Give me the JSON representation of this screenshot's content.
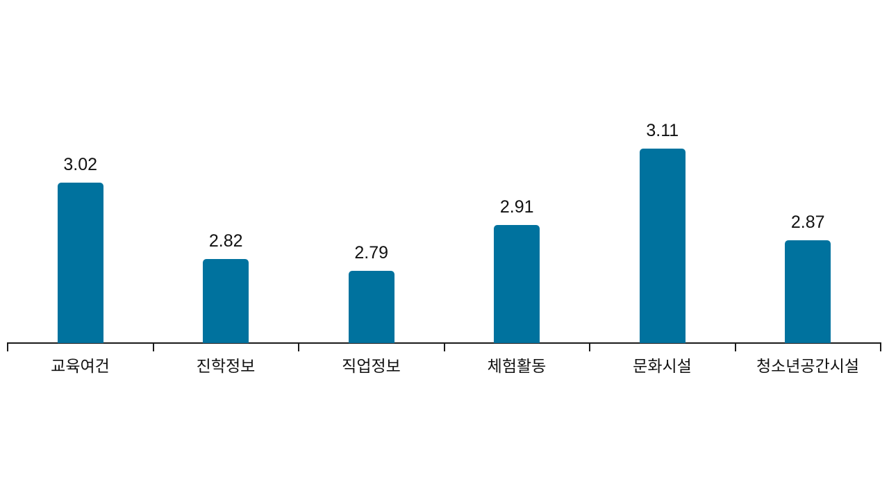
{
  "chart_data": {
    "type": "bar",
    "title": "",
    "xlabel": "",
    "ylabel": "",
    "categories": [
      "교육여건",
      "진학정보",
      "직업정보",
      "체험활동",
      "문화시설",
      "청소년공간시설"
    ],
    "values": [
      3.02,
      2.82,
      2.79,
      2.91,
      3.11,
      2.87
    ],
    "value_labels": [
      "3.02",
      "2.82",
      "2.79",
      "2.91",
      "3.11",
      "2.87"
    ],
    "ylim": [
      2.6,
      3.3
    ],
    "grid": false,
    "legend": null,
    "bar_color": "#00729e"
  }
}
